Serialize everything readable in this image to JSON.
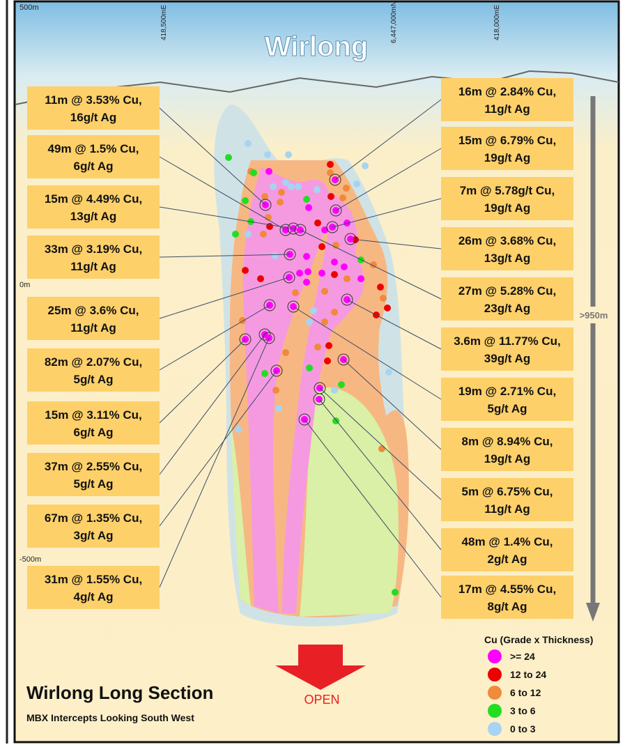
{
  "header": {
    "title": "Wirlong"
  },
  "grid_labels": {
    "easting_1": "418,500mE",
    "northing": "6,447,000mN",
    "easting_2": "418,000mE",
    "elevation_top": "500m",
    "elevation_mid": "0m",
    "elevation_bottom": "-500m"
  },
  "depth_extent": ">950m",
  "intercepts_left": [
    [
      "11m @ 3.53% Cu,",
      "16g/t Ag"
    ],
    [
      "49m @ 1.5% Cu,",
      "6g/t Ag"
    ],
    [
      "15m @ 4.49% Cu,",
      "13g/t Ag"
    ],
    [
      "33m @ 3.19% Cu,",
      "11g/t Ag"
    ],
    [
      "25m @ 3.6% Cu,",
      "11g/t Ag"
    ],
    [
      "82m @ 2.07% Cu,",
      "5g/t Ag"
    ],
    [
      "15m @ 3.11% Cu,",
      "6g/t Ag"
    ],
    [
      "37m @ 2.55% Cu,",
      "5g/t Ag"
    ],
    [
      "67m @ 1.35% Cu,",
      "3g/t Ag"
    ],
    [
      "31m @ 1.55% Cu,",
      "4g/t Ag"
    ]
  ],
  "intercepts_right": [
    [
      "16m @ 2.84% Cu,",
      "11g/t Ag"
    ],
    [
      "15m @ 6.79% Cu,",
      "19g/t Ag"
    ],
    [
      "7m @ 5.78g/t Cu,",
      "19g/t Ag"
    ],
    [
      "26m @ 3.68% Cu,",
      "13g/t Ag"
    ],
    [
      "27m @ 5.28% Cu,",
      "23g/t Ag"
    ],
    [
      "3.6m @ 11.77% Cu,",
      "39g/t Ag"
    ],
    [
      "19m @ 2.71% Cu,",
      "5g/t Ag"
    ],
    [
      "8m @ 8.94% Cu,",
      "19g/t Ag"
    ],
    [
      "5m @ 6.75% Cu,",
      "11g/t Ag"
    ],
    [
      "48m @ 1.4% Cu,",
      "2g/t Ag"
    ],
    [
      "17m @ 4.55% Cu,",
      "8g/t Ag"
    ]
  ],
  "footer": {
    "title": "Wirlong Long Section",
    "subtitle": "MBX Intercepts Looking South West"
  },
  "open_label": "OPEN",
  "legend": {
    "title": "Cu (Grade x Thickness)",
    "items": [
      {
        "label": ">= 24",
        "color": "#ff00ff"
      },
      {
        "label": "12 to 24",
        "color": "#ee0000"
      },
      {
        "label": "6 to 12",
        "color": "#f08a3c"
      },
      {
        "label": "3 to 6",
        "color": "#22dd22"
      },
      {
        "label": "0 to 3",
        "color": "#a6d4f2"
      }
    ]
  }
}
